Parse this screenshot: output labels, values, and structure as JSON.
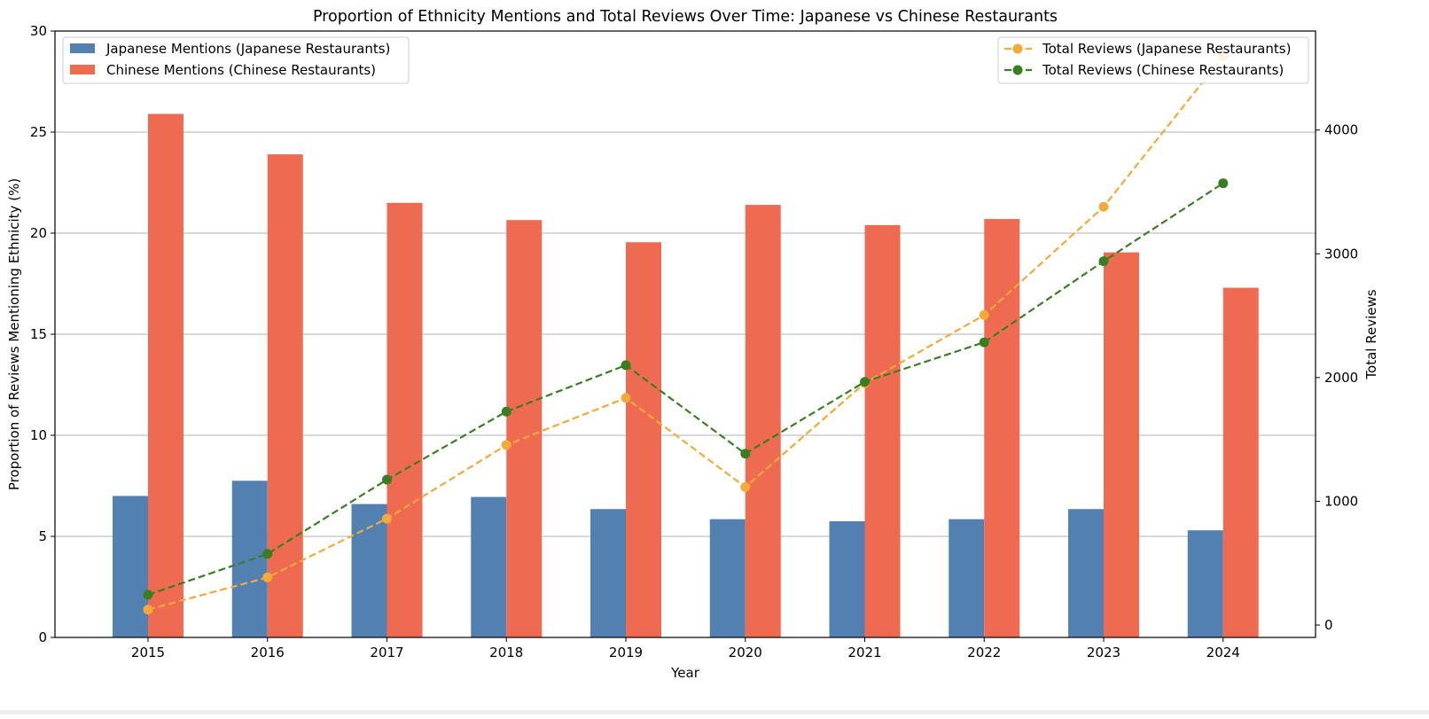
{
  "chart_data": {
    "type": "bar",
    "title": "Proportion of Ethnicity Mentions and Total Reviews Over Time: Japanese vs Chinese Restaurants",
    "xlabel": "Year",
    "ylabel": "Proportion of Reviews Mentioning Ethnicity (%)",
    "y2label": "Total Reviews",
    "categories": [
      "2015",
      "2016",
      "2017",
      "2018",
      "2019",
      "2020",
      "2021",
      "2022",
      "2023",
      "2024"
    ],
    "ylim": [
      0,
      30
    ],
    "yticks": [
      0,
      5,
      10,
      15,
      20,
      25,
      30
    ],
    "y2lim": [
      -100,
      4800
    ],
    "y2ticks": [
      0,
      1000,
      2000,
      3000,
      4000
    ],
    "grid": "horizontal",
    "bar_series": [
      {
        "name": "Japanese Mentions (Japanese Restaurants)",
        "color": "#5281b1",
        "values": [
          7.0,
          7.75,
          6.6,
          6.95,
          6.35,
          5.85,
          5.75,
          5.85,
          6.35,
          5.3
        ]
      },
      {
        "name": "Chinese Mentions (Chinese Restaurants)",
        "color": "#ee6b52",
        "values": [
          25.9,
          23.9,
          21.5,
          20.65,
          19.55,
          21.4,
          20.4,
          20.7,
          19.05,
          17.3
        ]
      }
    ],
    "line_series": [
      {
        "name": "Total Reviews (Japanese Restaurants)",
        "color": "#f5a93a",
        "style": "dashed",
        "marker": "circle",
        "values": [
          125,
          385,
          860,
          1455,
          1835,
          1115,
          1955,
          2505,
          3380,
          4595
        ]
      },
      {
        "name": "Total Reviews (Chinese Restaurants)",
        "color": "#3a7e23",
        "style": "dashed",
        "marker": "circle",
        "values": [
          245,
          575,
          1175,
          1725,
          2100,
          1385,
          1965,
          2285,
          2940,
          3570
        ]
      }
    ],
    "legend_left_position": "upper-left",
    "legend_right_position": "upper-right"
  }
}
